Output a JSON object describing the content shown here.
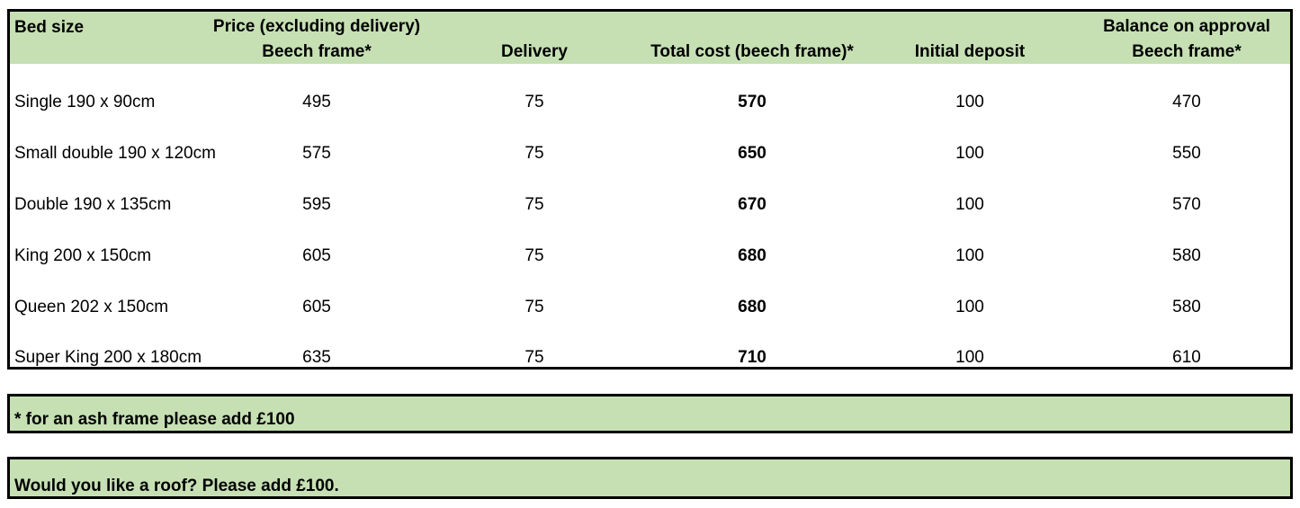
{
  "table": {
    "headers": {
      "bed_size": "Bed size",
      "price_line1": "Price (excluding delivery)",
      "price_line2": "Beech frame*",
      "delivery": "Delivery",
      "total": "Total cost (beech frame)*",
      "deposit": "Initial deposit",
      "balance_line1": "Balance on approval",
      "balance_line2": "Beech frame*"
    },
    "rows": [
      {
        "bed_size": "Single 190 x 90cm",
        "price": "495",
        "delivery": "75",
        "total": "570",
        "deposit": "100",
        "balance": "470"
      },
      {
        "bed_size": "Small double 190 x 120cm",
        "price": "575",
        "delivery": "75",
        "total": "650",
        "deposit": "100",
        "balance": "550"
      },
      {
        "bed_size": "Double 190 x 135cm",
        "price": "595",
        "delivery": "75",
        "total": "670",
        "deposit": "100",
        "balance": "570"
      },
      {
        "bed_size": "King 200 x 150cm",
        "price": "605",
        "delivery": "75",
        "total": "680",
        "deposit": "100",
        "balance": "580"
      },
      {
        "bed_size": "Queen 202 x 150cm",
        "price": "605",
        "delivery": "75",
        "total": "680",
        "deposit": "100",
        "balance": "580"
      },
      {
        "bed_size": "Super King 200 x 180cm",
        "price": "635",
        "delivery": "75",
        "total": "710",
        "deposit": "100",
        "balance": "610"
      }
    ]
  },
  "notes": {
    "ash_frame": "* for an ash frame please add £100",
    "roof": "Would you like a roof? Please add £100."
  },
  "colors": {
    "header_fill": "#c6e0b4",
    "border": "#000000"
  }
}
